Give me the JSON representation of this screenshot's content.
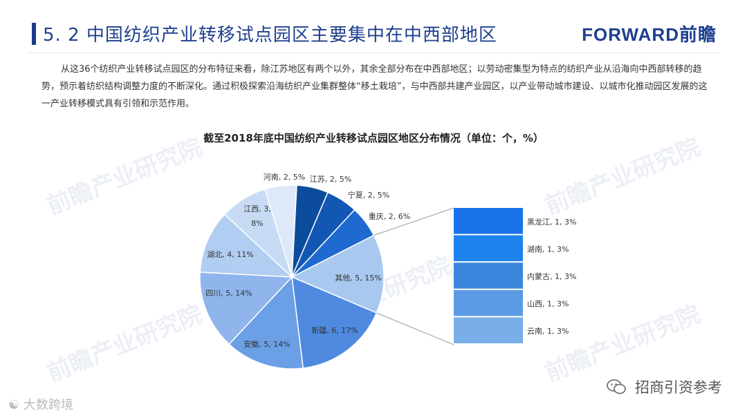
{
  "header": {
    "title": "5. 2  中国纺织产业转移试点园区主要集中在中西部地区",
    "brand": "FORWARD前瞻"
  },
  "intro": {
    "text": "从这36个纺织产业转移试点园区的分布特征来看，除江苏地区有两个以外，其余全部分布在中西部地区；以劳动密集型为特点的纺织产业从沿海向中西部转移的趋势，预示着纺织结构调整力度的不断深化。通过积极探索沿海纺织产业集群整体“移土栽培”，与中西部共建产业园区，以产业带动城市建设、以城市化推动园区发展的这一产业转移模式具有引领和示范作用。"
  },
  "watermark": "前瞻产业研究院",
  "footer": {
    "left": "大数跨境",
    "right": "招商引资参考"
  },
  "colors": {
    "dark_blue": "#0b4fa8",
    "mid_blue": "#1a6ad6",
    "title_blue": "#1e3f8f"
  },
  "chart_data": {
    "type": "pie",
    "subtype": "bar-of-pie",
    "title": "截至2018年底中国纺织产业转移试点园区地区分布情况（单位：个，%）",
    "total": 36,
    "slices": [
      {
        "name": "江苏",
        "value": 2,
        "percent": 5,
        "label": "江苏, 2, 5%",
        "color": "#0c4c9c"
      },
      {
        "name": "宁夏",
        "value": 2,
        "percent": 5,
        "label": "宁夏, 2, 5%",
        "color": "#1257b3"
      },
      {
        "name": "重庆",
        "value": 2,
        "percent": 6,
        "label": "重庆, 2, 6%",
        "color": "#1f6ad0"
      },
      {
        "name": "其他",
        "value": 5,
        "percent": 15,
        "label": "其他, 5, 15%",
        "color": "#a8c8f0"
      },
      {
        "name": "新疆",
        "value": 6,
        "percent": 17,
        "label": "新疆, 6, 17%",
        "color": "#4f8ae0"
      },
      {
        "name": "安徽",
        "value": 5,
        "percent": 14,
        "label": "安徽, 5, 14%",
        "color": "#6b9fe6"
      },
      {
        "name": "四川",
        "value": 5,
        "percent": 14,
        "label": "四川, 5, 14%",
        "color": "#8fb5ec"
      },
      {
        "name": "湖北",
        "value": 4,
        "percent": 11,
        "label": "湖北, 4, 11%",
        "color": "#b2cdf2"
      },
      {
        "name": "江西",
        "value": 3,
        "percent": 8,
        "label": "江西, 3, 8%",
        "color": "#c8dbf5"
      },
      {
        "name": "河南",
        "value": 2,
        "percent": 5,
        "label": "河南, 2, 5%",
        "color": "#dde8f8"
      }
    ],
    "other_breakdown": [
      {
        "name": "黑龙江",
        "value": 1,
        "percent": 3,
        "label": "黑龙江, 1, 3%",
        "color": "#1a73e8"
      },
      {
        "name": "湖南",
        "value": 1,
        "percent": 3,
        "label": "湖南, 1, 3%",
        "color": "#1e82ec"
      },
      {
        "name": "内蒙古",
        "value": 1,
        "percent": 3,
        "label": "内蒙古, 1, 3%",
        "color": "#3b86dc"
      },
      {
        "name": "山西",
        "value": 1,
        "percent": 3,
        "label": "山西, 1, 3%",
        "color": "#5b9ae4"
      },
      {
        "name": "云南",
        "value": 1,
        "percent": 3,
        "label": "云南, 1, 3%",
        "color": "#79aee8"
      }
    ]
  }
}
